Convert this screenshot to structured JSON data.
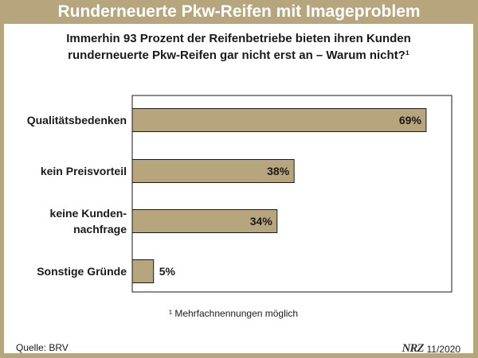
{
  "header": {
    "title": "Runderneuerte Pkw-Reifen mit Imageproblem"
  },
  "subtitle_lines": [
    "Immerhin 93 Prozent der Reifenbetriebe bieten ihren Kunden",
    "runderneuerte Pkw-Reifen gar nicht erst an – Warum nicht?¹"
  ],
  "chart_data": {
    "type": "bar",
    "orientation": "horizontal",
    "categories": [
      "Qualitätsbedenken",
      "kein Preisvorteil",
      "keine Kunden-nachfrage",
      "Sonstige Gründe"
    ],
    "category_lines": [
      [
        "Qualitätsbedenken"
      ],
      [
        "kein Preisvorteil"
      ],
      [
        "keine Kunden-",
        "nachfrage"
      ],
      [
        "Sonstige Gründe"
      ]
    ],
    "values": [
      69,
      38,
      34,
      5
    ],
    "value_labels": [
      "69%",
      "38%",
      "34%",
      "5%"
    ],
    "xlim": [
      0,
      75
    ],
    "bar_color": "#b7a57e",
    "grid": false
  },
  "footnote": "¹ Mehrfachnennungen möglich",
  "footer": {
    "source": "Quelle: BRV",
    "logo": "NRZ",
    "date": "11/2020"
  },
  "colors": {
    "background": "#b7a57e",
    "panel": "#ffffff",
    "title_text": "#ffffff"
  }
}
